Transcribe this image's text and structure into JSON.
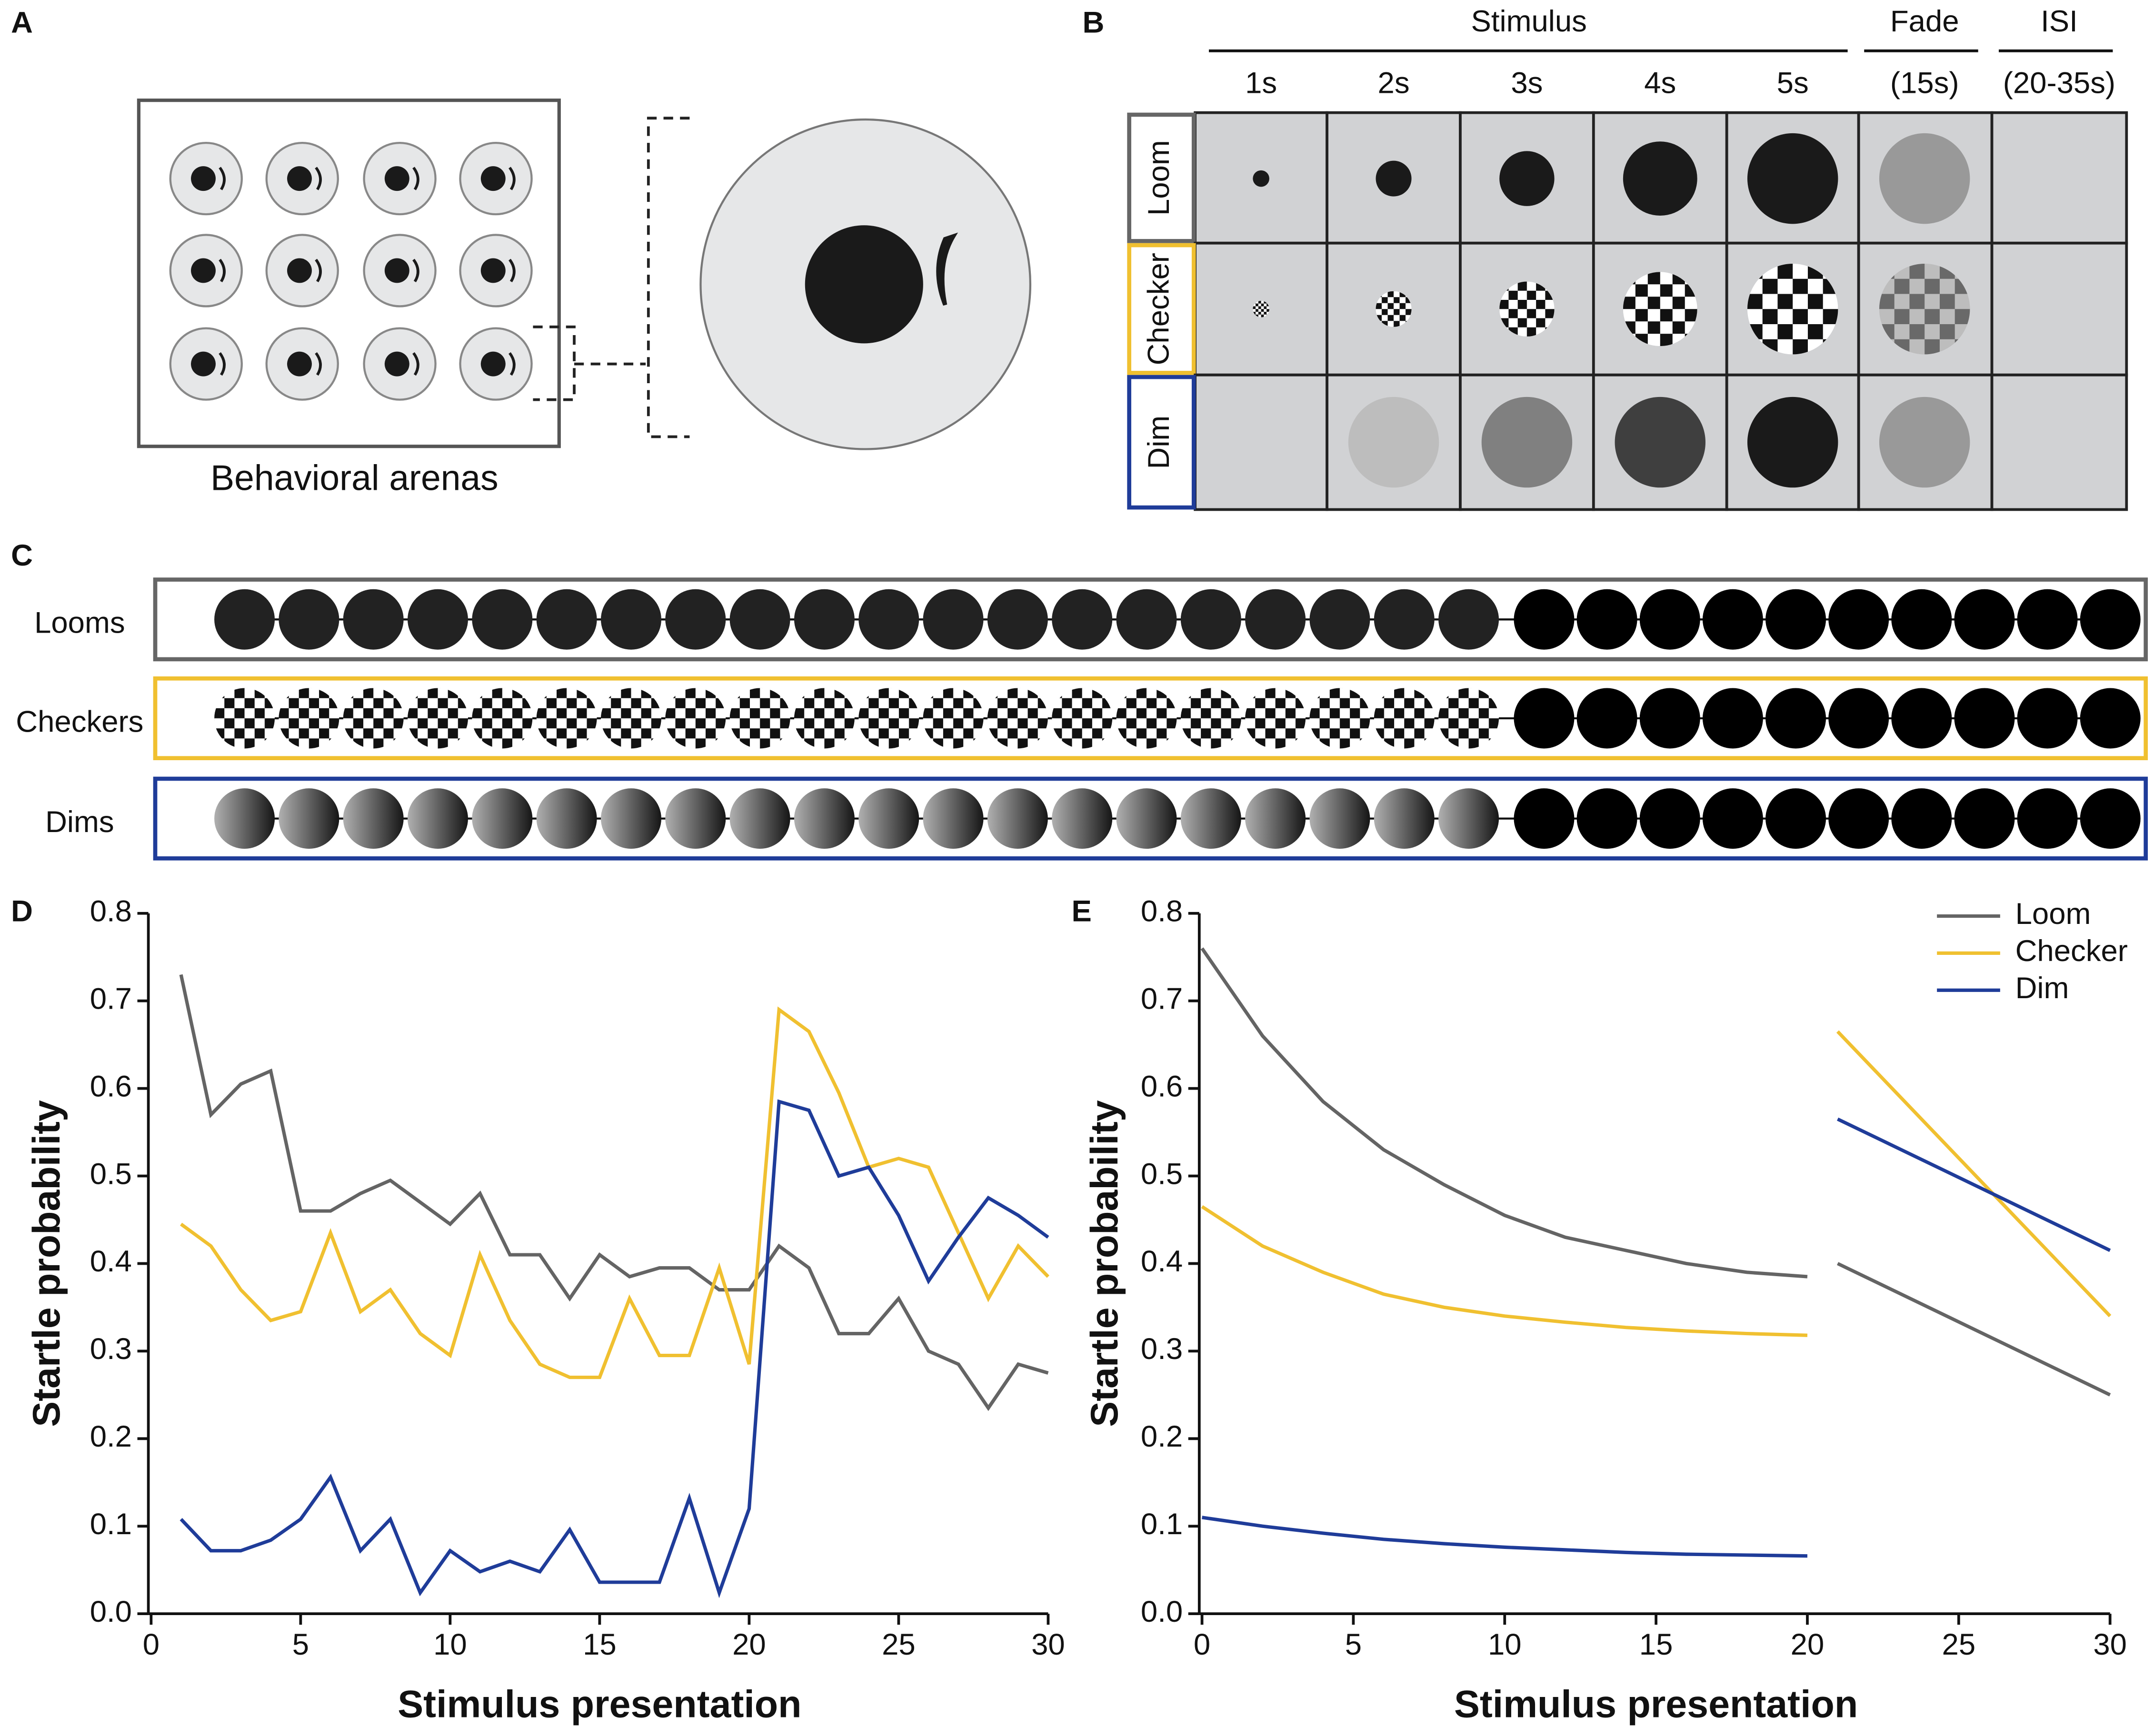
{
  "panel_a": {
    "label": "A",
    "caption": "Behavioral arenas"
  },
  "panel_b": {
    "label": "B",
    "header": "Stimulus",
    "durations": [
      "1s",
      "2s",
      "3s",
      "4s",
      "5s"
    ],
    "fade": [
      "Fade",
      "(15s)"
    ],
    "isi": [
      "ISI",
      "(20-35s)"
    ],
    "rows": [
      "Loom",
      "Checker",
      "Dim"
    ]
  },
  "panel_c": {
    "label": "C",
    "rows": [
      "Looms",
      "Checkers",
      "Dims"
    ]
  },
  "chart_data": [
    {
      "type": "line",
      "label": "D",
      "xlabel": "Stimulus presentation",
      "ylabel": "Startle probability",
      "x": [
        1,
        2,
        3,
        4,
        5,
        6,
        7,
        8,
        9,
        10,
        11,
        12,
        13,
        14,
        15,
        16,
        17,
        18,
        19,
        20,
        21,
        22,
        23,
        24,
        25,
        26,
        27,
        28,
        29,
        30
      ],
      "series": [
        {
          "name": "Loom",
          "color": "#646464",
          "values": [
            0.73,
            0.57,
            0.605,
            0.62,
            0.46,
            0.46,
            0.48,
            0.495,
            0.47,
            0.445,
            0.48,
            0.41,
            0.41,
            0.36,
            0.41,
            0.385,
            0.395,
            0.395,
            0.37,
            0.37,
            0.42,
            0.395,
            0.32,
            0.32,
            0.36,
            0.3,
            0.285,
            0.235,
            0.285,
            0.275
          ]
        },
        {
          "name": "Checker",
          "color": "#f0c030",
          "values": [
            0.445,
            0.42,
            0.37,
            0.335,
            0.345,
            0.435,
            0.345,
            0.37,
            0.32,
            0.295,
            0.41,
            0.335,
            0.285,
            0.27,
            0.27,
            0.36,
            0.295,
            0.295,
            0.395,
            0.285,
            0.69,
            0.665,
            0.595,
            0.51,
            0.52,
            0.51,
            0.435,
            0.36,
            0.42,
            0.385
          ]
        },
        {
          "name": "Dim",
          "color": "#1f3c99",
          "values": [
            0.108,
            0.072,
            0.072,
            0.084,
            0.108,
            0.156,
            0.072,
            0.108,
            0.024,
            0.072,
            0.048,
            0.06,
            0.048,
            0.096,
            0.036,
            0.036,
            0.036,
            0.132,
            0.024,
            0.12,
            0.585,
            0.575,
            0.5,
            0.51,
            0.455,
            0.38,
            0.43,
            0.475,
            0.455,
            0.43
          ]
        }
      ],
      "xlim": [
        0,
        30
      ],
      "xticks": [
        0,
        5,
        10,
        15,
        20,
        25,
        30
      ],
      "ylim": [
        0,
        0.8
      ],
      "yticks": [
        {
          "value": 0,
          "label": "0.0"
        },
        0.1,
        0.2,
        0.3,
        0.4,
        0.5,
        0.6,
        0.7,
        0.8
      ]
    },
    {
      "type": "line",
      "label": "E",
      "xlabel": "Stimulus presentation",
      "ylabel": "Startle probability",
      "legend": "upper right",
      "x": [
        0,
        2,
        4,
        6,
        8,
        10,
        12,
        14,
        16,
        18,
        20
      ],
      "x2": [
        21,
        30
      ],
      "series": [
        {
          "name": "Loom",
          "color": "#646464",
          "values": [
            0.76,
            0.66,
            0.585,
            0.53,
            0.49,
            0.455,
            0.43,
            0.415,
            0.4,
            0.39,
            0.385
          ],
          "values2": [
            0.4,
            0.25
          ]
        },
        {
          "name": "Checker",
          "color": "#f0c030",
          "values": [
            0.465,
            0.42,
            0.39,
            0.365,
            0.35,
            0.34,
            0.333,
            0.327,
            0.323,
            0.32,
            0.318
          ],
          "values2": [
            0.665,
            0.34
          ]
        },
        {
          "name": "Dim",
          "color": "#1f3c99",
          "values": [
            0.11,
            0.1,
            0.092,
            0.085,
            0.08,
            0.076,
            0.073,
            0.07,
            0.068,
            0.067,
            0.066
          ],
          "values2": [
            0.565,
            0.415
          ]
        }
      ],
      "xlim": [
        0,
        30
      ],
      "xticks": [
        0,
        5,
        10,
        15,
        20,
        25,
        30
      ],
      "ylim": [
        0,
        0.8
      ],
      "yticks": [
        {
          "value": 0,
          "label": "0.0"
        },
        0.1,
        0.2,
        0.3,
        0.4,
        0.5,
        0.6,
        0.7,
        0.8
      ]
    }
  ]
}
